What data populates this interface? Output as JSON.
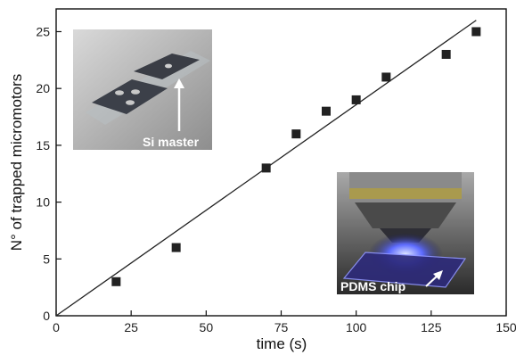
{
  "chart_data": {
    "type": "scatter",
    "title": "",
    "xlabel": "time (s)",
    "ylabel": "N° of trapped micromotors",
    "xlim": [
      0,
      150
    ],
    "ylim": [
      0,
      27
    ],
    "xticks": [
      0,
      25,
      50,
      75,
      100,
      125,
      150
    ],
    "yticks": [
      0,
      5,
      10,
      15,
      20,
      25
    ],
    "grid": false,
    "series": [
      {
        "marker": "square",
        "color": "#222222",
        "x": [
          20,
          40,
          70,
          80,
          90,
          100,
          110,
          130,
          140
        ],
        "y": [
          3,
          6,
          13,
          16,
          18,
          19,
          21,
          23,
          25
        ]
      }
    ],
    "fit_line": {
      "x": [
        0,
        140
      ],
      "y": [
        0,
        26
      ],
      "color": "#222222"
    },
    "insets": [
      {
        "label": "Si master",
        "position": "top-left"
      },
      {
        "label": "PDMS chip",
        "position": "bottom-right"
      }
    ]
  }
}
